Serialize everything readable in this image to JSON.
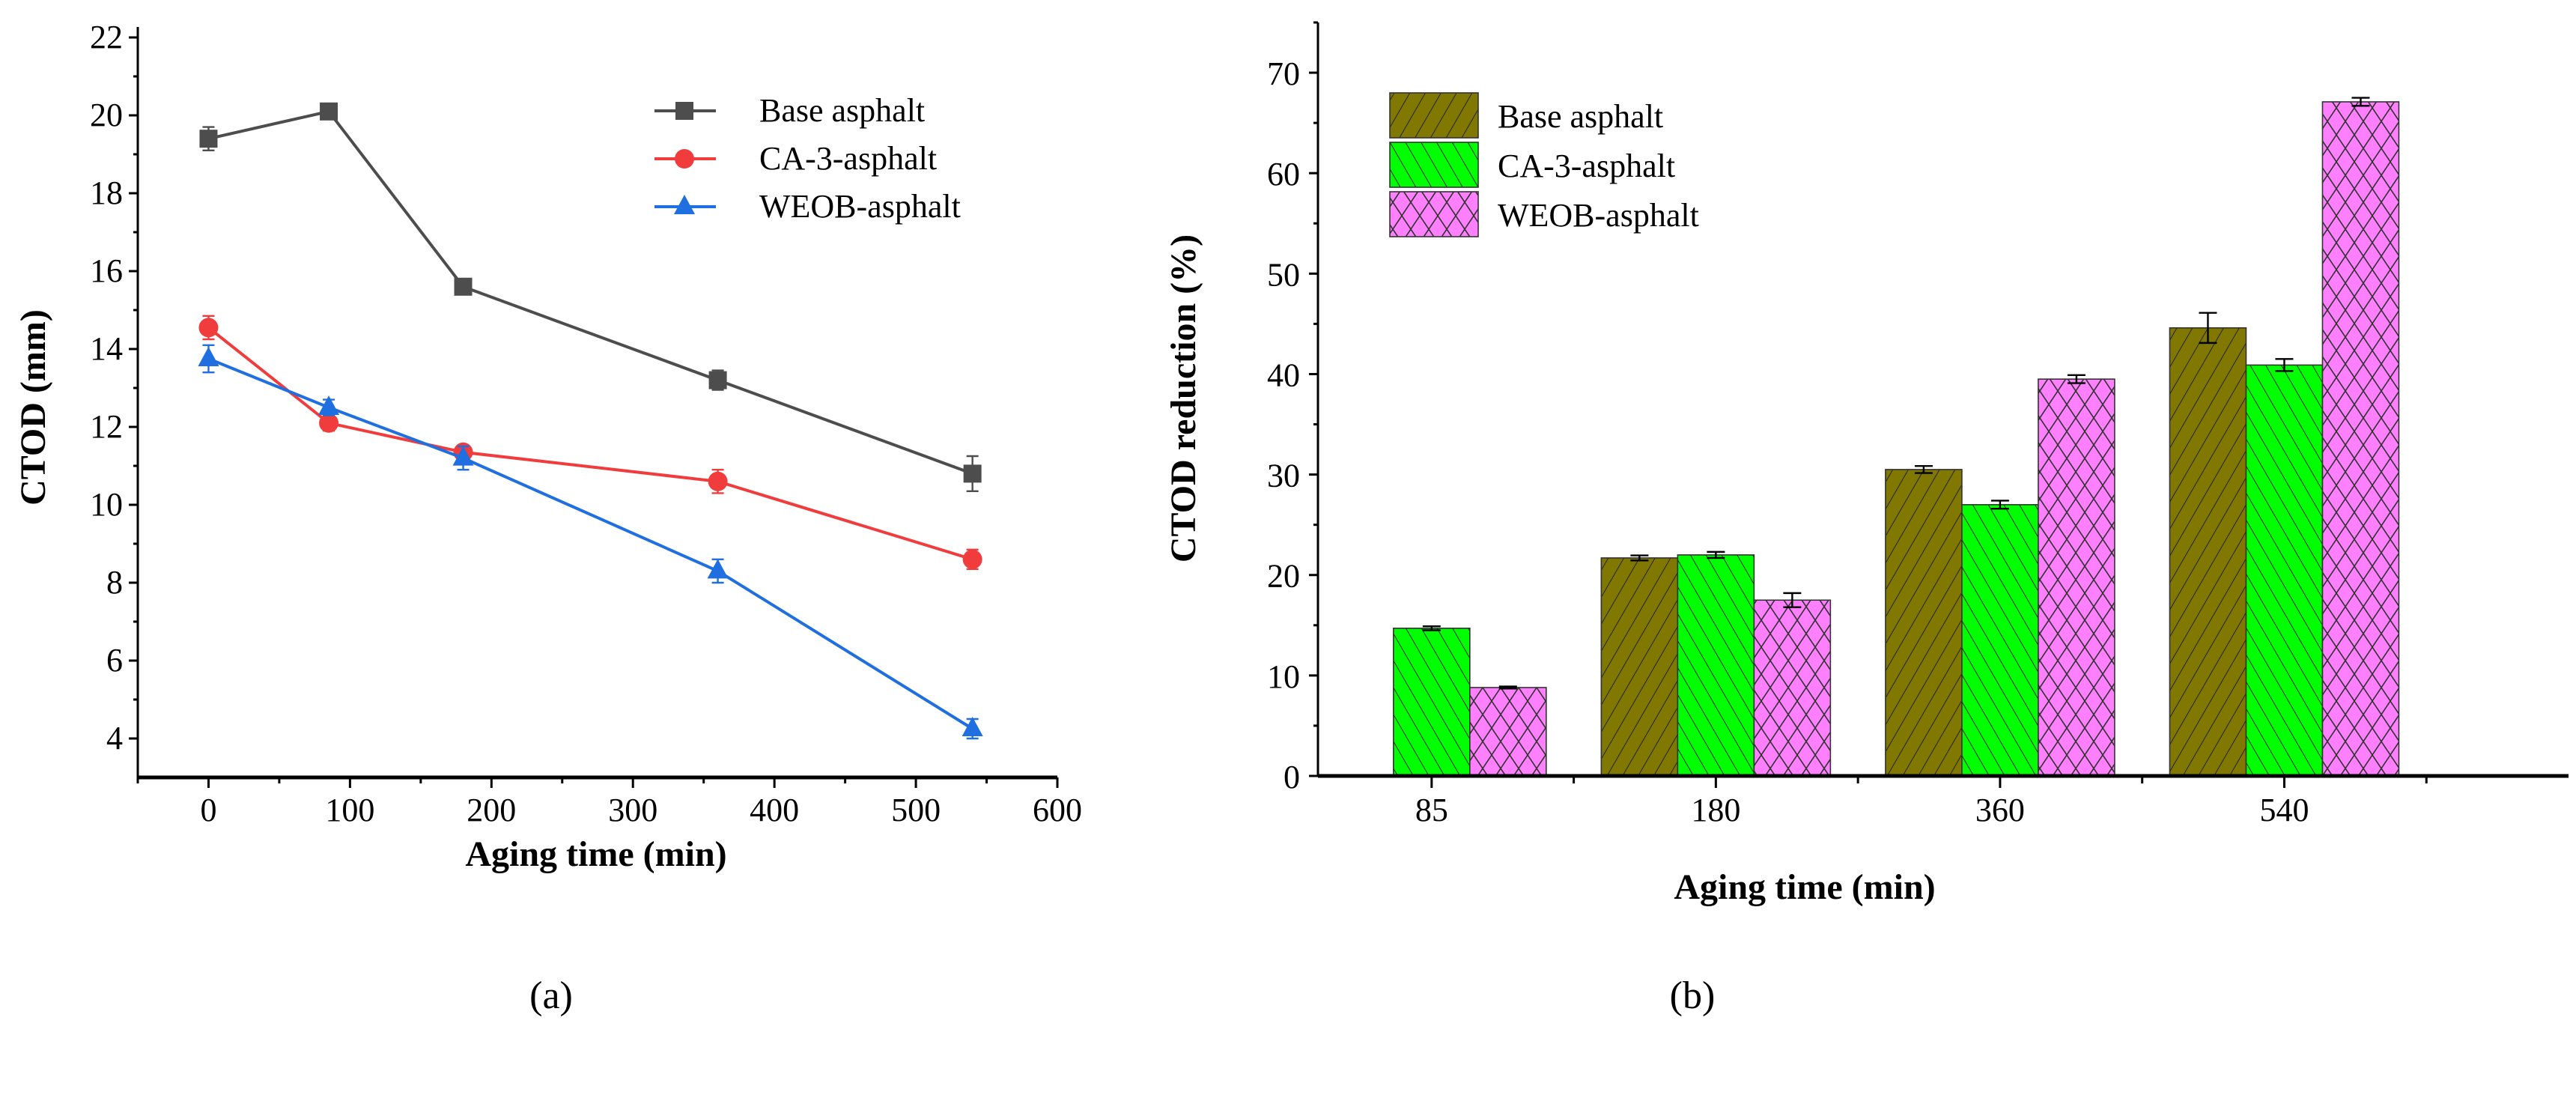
{
  "chart_data": [
    {
      "type": "line",
      "panel_label": "(a)",
      "xlabel": "Aging time (min)",
      "ylabel": "CTOD (mm)",
      "xlim": [
        -50,
        600
      ],
      "ylim": [
        3,
        22
      ],
      "xticks": [
        0,
        100,
        200,
        300,
        400,
        500,
        600
      ],
      "yticks": [
        4,
        6,
        8,
        10,
        12,
        14,
        16,
        18,
        20,
        22
      ],
      "grid": false,
      "legend": "top-right",
      "x": [
        0,
        85,
        180,
        360,
        540
      ],
      "series": [
        {
          "name": "Base asphalt",
          "color": "#4d4d4d",
          "marker": "square",
          "values": [
            19.4,
            20.1,
            15.6,
            13.2,
            10.8
          ],
          "errors": [
            0.3,
            0.15,
            0.2,
            0.25,
            0.45
          ]
        },
        {
          "name": "CA-3-asphalt",
          "color": "#f03c3c",
          "marker": "circle",
          "values": [
            14.55,
            12.1,
            11.35,
            10.6,
            8.6
          ],
          "errors": [
            0.3,
            0.2,
            0.15,
            0.3,
            0.25
          ]
        },
        {
          "name": "WEOB-asphalt",
          "color": "#1f6fe0",
          "marker": "triangle",
          "values": [
            13.75,
            12.5,
            11.2,
            8.3,
            4.25
          ],
          "errors": [
            0.35,
            0.2,
            0.3,
            0.3,
            0.25
          ]
        }
      ]
    },
    {
      "type": "bar",
      "panel_label": "(b)",
      "xlabel": "Aging time (min)",
      "ylabel": "CTOD reduction (%)",
      "categories": [
        "85",
        "180",
        "360",
        "540"
      ],
      "ylim": [
        0,
        75
      ],
      "yticks": [
        0,
        10,
        20,
        30,
        40,
        50,
        60,
        70
      ],
      "grid": false,
      "legend": "top-left",
      "series": [
        {
          "name": "Base asphalt",
          "color": "#807800",
          "pattern": "diagonal-forward",
          "values": [
            null,
            21.7,
            30.5,
            44.6
          ],
          "errors": [
            null,
            0.25,
            0.35,
            1.5
          ]
        },
        {
          "name": "CA-3-asphalt",
          "color": "#00ff00",
          "pattern": "diagonal-back",
          "values": [
            14.7,
            22.0,
            27.0,
            40.9
          ],
          "errors": [
            0.2,
            0.3,
            0.4,
            0.6
          ]
        },
        {
          "name": "WEOB-asphalt",
          "color": "#ff80ff",
          "pattern": "crosshatch",
          "values": [
            8.8,
            17.5,
            39.5,
            67.1
          ],
          "errors": [
            0.1,
            0.7,
            0.4,
            0.4
          ]
        }
      ]
    }
  ]
}
